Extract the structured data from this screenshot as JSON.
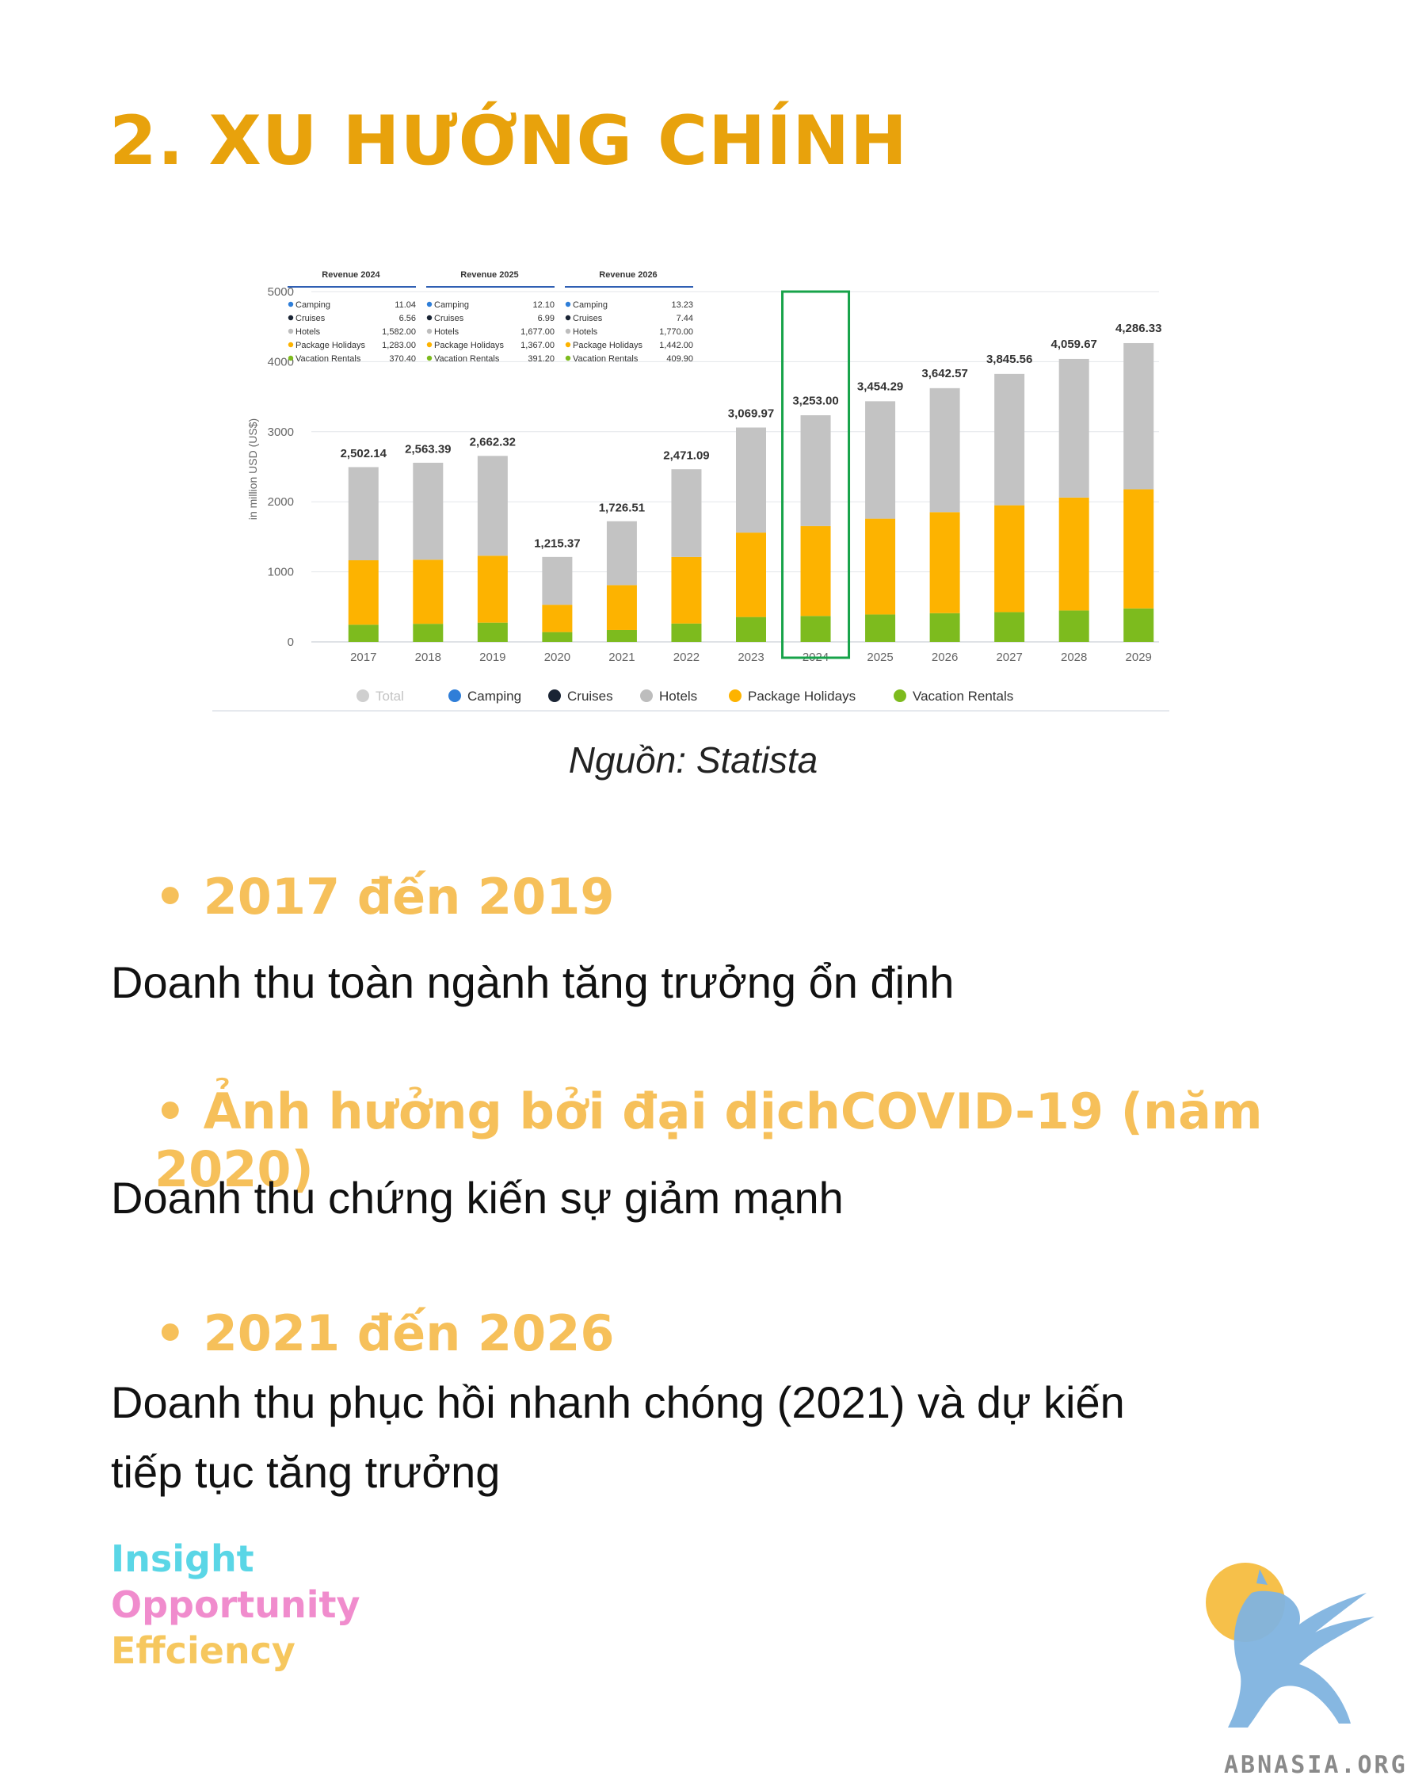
{
  "title": "2. XU HƯỚNG CHÍNH",
  "source": "Nguồn: Statista",
  "chart_data": {
    "type": "bar",
    "stacked": true,
    "ylabel": "in million USD (US$)",
    "ylim": [
      0,
      5000
    ],
    "yticks": [
      0,
      1000,
      2000,
      3000,
      4000,
      5000
    ],
    "grid": true,
    "legend_position": "bottom",
    "categories": [
      "2017",
      "2018",
      "2019",
      "2020",
      "2021",
      "2022",
      "2023",
      "2024",
      "2025",
      "2026",
      "2027",
      "2028",
      "2029"
    ],
    "totals": [
      2502.14,
      2563.39,
      2662.32,
      1215.37,
      1726.51,
      2471.09,
      3069.97,
      3253.0,
      3454.29,
      3642.57,
      3845.56,
      4059.67,
      4286.33
    ],
    "total_labels": [
      "2,502.14",
      "2,563.39",
      "2,662.32",
      "1,215.37",
      "1,726.51",
      "2,471.09",
      "3,069.97",
      "3,253.00",
      "3,454.29",
      "3,642.57",
      "3,845.56",
      "4,059.67",
      "4,286.33"
    ],
    "highlight": "2024",
    "series": [
      {
        "name": "Vacation Rentals",
        "color": "#7dbb1e",
        "values": [
          245,
          258,
          275,
          140,
          170,
          262,
          355,
          370,
          391,
          410,
          425,
          448,
          478
        ]
      },
      {
        "name": "Package Holidays",
        "color": "#fdb300",
        "values": [
          920,
          915,
          955,
          390,
          640,
          950,
          1205,
          1283,
          1367,
          1442,
          1525,
          1612,
          1700
        ]
      },
      {
        "name": "Hotels",
        "color": "#c3c3c3",
        "values": [
          1330,
          1384,
          1425,
          682,
          912,
          1252,
          1500,
          1582,
          1677,
          1770,
          1875,
          1979,
          2087
        ]
      }
    ],
    "legend": [
      {
        "name": "Total",
        "color": "#cfcfcf",
        "muted": true
      },
      {
        "name": "Camping",
        "color": "#2f7ed8"
      },
      {
        "name": "Cruises",
        "color": "#1a2434"
      },
      {
        "name": "Hotels",
        "color": "#bdbdbd"
      },
      {
        "name": "Package Holidays",
        "color": "#fdb300"
      },
      {
        "name": "Vacation Rentals",
        "color": "#7dbb1e"
      }
    ],
    "tooltips": [
      {
        "title": "Revenue 2024",
        "rows": [
          {
            "label": "Camping",
            "value": "11.04",
            "color": "#2f7ed8"
          },
          {
            "label": "Cruises",
            "value": "6.56",
            "color": "#1a2434"
          },
          {
            "label": "Hotels",
            "value": "1,582.00",
            "color": "#bdbdbd"
          },
          {
            "label": "Package Holidays",
            "value": "1,283.00",
            "color": "#fdb300"
          },
          {
            "label": "Vacation Rentals",
            "value": "370.40",
            "color": "#7dbb1e"
          }
        ]
      },
      {
        "title": "Revenue 2025",
        "rows": [
          {
            "label": "Camping",
            "value": "12.10",
            "color": "#2f7ed8"
          },
          {
            "label": "Cruises",
            "value": "6.99",
            "color": "#1a2434"
          },
          {
            "label": "Hotels",
            "value": "1,677.00",
            "color": "#bdbdbd"
          },
          {
            "label": "Package Holidays",
            "value": "1,367.00",
            "color": "#fdb300"
          },
          {
            "label": "Vacation Rentals",
            "value": "391.20",
            "color": "#7dbb1e"
          }
        ]
      },
      {
        "title": "Revenue 2026",
        "rows": [
          {
            "label": "Camping",
            "value": "13.23",
            "color": "#2f7ed8"
          },
          {
            "label": "Cruises",
            "value": "7.44",
            "color": "#1a2434"
          },
          {
            "label": "Hotels",
            "value": "1,770.00",
            "color": "#bdbdbd"
          },
          {
            "label": "Package Holidays",
            "value": "1,442.00",
            "color": "#fdb300"
          },
          {
            "label": "Vacation Rentals",
            "value": "409.90",
            "color": "#7dbb1e"
          }
        ]
      }
    ]
  },
  "sections": [
    {
      "heading": "2017 đến 2019",
      "text": [
        "Doanh thu toàn ngành tăng trưởng ổn định"
      ]
    },
    {
      "heading": "Ảnh hưởng bởi đại dịchCOVID-19 (năm 2020)",
      "text": [
        "Doanh thu chứng kiến sự giảm mạnh"
      ]
    },
    {
      "heading": "2021 đến 2026",
      "text": [
        "Doanh thu phục hồi nhanh chóng (2021) và dự kiến",
        "tiếp tục tăng trưởng"
      ]
    }
  ],
  "taglines": [
    {
      "text": "Insight",
      "color": "#5ad6e6"
    },
    {
      "text": "Opportunity",
      "color": "#f08ccd"
    },
    {
      "text": "Effciency",
      "color": "#f6c75e"
    }
  ],
  "brand": "ABNASIA.ORG",
  "colors": {
    "title": "#e8a20c",
    "heading": "#f6c05a",
    "highlight_box": "#17a34a",
    "logo_circle": "#f6c04a",
    "logo_griffin": "#7fb3df"
  }
}
